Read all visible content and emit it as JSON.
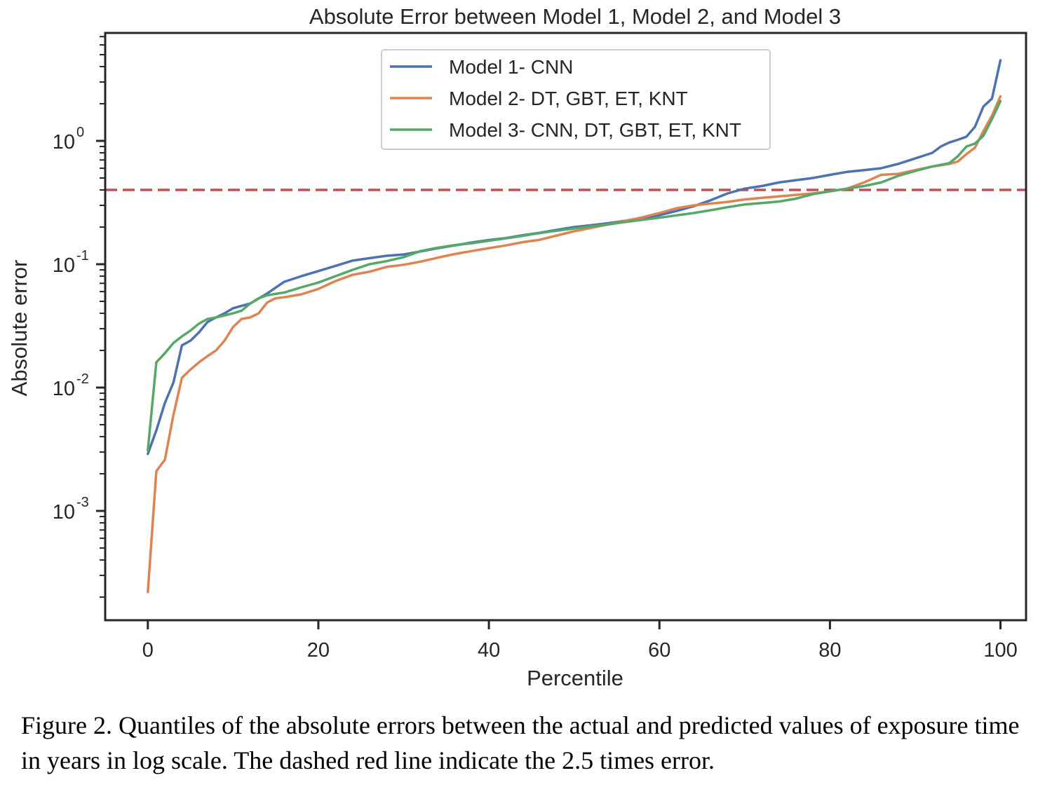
{
  "chart_data": {
    "type": "line",
    "title": "Absolute Error between Model 1, Model 2, and Model 3",
    "xlabel": "Percentile",
    "ylabel": "Absolute error",
    "y_scale": "log",
    "xlim": [
      -5,
      103
    ],
    "ylim": [
      0.00013,
      7.5
    ],
    "x_ticks": [
      0,
      20,
      40,
      60,
      80,
      100
    ],
    "y_ticks": [
      {
        "value": 0.001,
        "base": "10",
        "exp": "-3"
      },
      {
        "value": 0.01,
        "base": "10",
        "exp": "-2"
      },
      {
        "value": 0.1,
        "base": "10",
        "exp": "-1"
      },
      {
        "value": 1,
        "base": "10",
        "exp": "0"
      }
    ],
    "grid": false,
    "legend_position": "upper center",
    "threshold": {
      "value": 0.4,
      "style": "dashed",
      "color": "#c44e52"
    },
    "series": [
      {
        "name": "Model 1- CNN",
        "color": "#4c72b0",
        "points": [
          [
            0,
            0.0029
          ],
          [
            1,
            0.0045
          ],
          [
            2,
            0.0075
          ],
          [
            3,
            0.011
          ],
          [
            4,
            0.022
          ],
          [
            5,
            0.024
          ],
          [
            6,
            0.028
          ],
          [
            7,
            0.034
          ],
          [
            8,
            0.037
          ],
          [
            9,
            0.04
          ],
          [
            10,
            0.044
          ],
          [
            12,
            0.048
          ],
          [
            14,
            0.058
          ],
          [
            16,
            0.072
          ],
          [
            18,
            0.08
          ],
          [
            20,
            0.088
          ],
          [
            22,
            0.097
          ],
          [
            24,
            0.107
          ],
          [
            26,
            0.112
          ],
          [
            28,
            0.117
          ],
          [
            30,
            0.12
          ],
          [
            32,
            0.127
          ],
          [
            34,
            0.135
          ],
          [
            36,
            0.142
          ],
          [
            38,
            0.15
          ],
          [
            40,
            0.157
          ],
          [
            42,
            0.163
          ],
          [
            44,
            0.172
          ],
          [
            46,
            0.18
          ],
          [
            48,
            0.19
          ],
          [
            50,
            0.2
          ],
          [
            52,
            0.207
          ],
          [
            54,
            0.215
          ],
          [
            56,
            0.225
          ],
          [
            58,
            0.237
          ],
          [
            60,
            0.25
          ],
          [
            62,
            0.27
          ],
          [
            64,
            0.295
          ],
          [
            66,
            0.33
          ],
          [
            68,
            0.375
          ],
          [
            70,
            0.41
          ],
          [
            72,
            0.43
          ],
          [
            74,
            0.46
          ],
          [
            76,
            0.48
          ],
          [
            78,
            0.5
          ],
          [
            80,
            0.53
          ],
          [
            82,
            0.56
          ],
          [
            84,
            0.58
          ],
          [
            86,
            0.6
          ],
          [
            88,
            0.65
          ],
          [
            90,
            0.72
          ],
          [
            92,
            0.8
          ],
          [
            93,
            0.9
          ],
          [
            94,
            0.97
          ],
          [
            95,
            1.02
          ],
          [
            96,
            1.08
          ],
          [
            97,
            1.3
          ],
          [
            98,
            1.9
          ],
          [
            99,
            2.2
          ],
          [
            100,
            4.5
          ]
        ]
      },
      {
        "name": "Model 2- DT, GBT, ET, KNT",
        "color": "#dd8452",
        "points": [
          [
            0,
            0.00022
          ],
          [
            1,
            0.0021
          ],
          [
            2,
            0.0026
          ],
          [
            3,
            0.006
          ],
          [
            4,
            0.012
          ],
          [
            5,
            0.014
          ],
          [
            6,
            0.016
          ],
          [
            7,
            0.018
          ],
          [
            8,
            0.02
          ],
          [
            9,
            0.024
          ],
          [
            10,
            0.031
          ],
          [
            11,
            0.036
          ],
          [
            12,
            0.037
          ],
          [
            13,
            0.04
          ],
          [
            14,
            0.049
          ],
          [
            15,
            0.053
          ],
          [
            16,
            0.054
          ],
          [
            18,
            0.057
          ],
          [
            20,
            0.063
          ],
          [
            22,
            0.073
          ],
          [
            24,
            0.082
          ],
          [
            26,
            0.087
          ],
          [
            28,
            0.095
          ],
          [
            30,
            0.099
          ],
          [
            32,
            0.105
          ],
          [
            34,
            0.113
          ],
          [
            36,
            0.121
          ],
          [
            38,
            0.128
          ],
          [
            40,
            0.135
          ],
          [
            42,
            0.142
          ],
          [
            44,
            0.151
          ],
          [
            46,
            0.158
          ],
          [
            48,
            0.171
          ],
          [
            50,
            0.185
          ],
          [
            52,
            0.197
          ],
          [
            54,
            0.21
          ],
          [
            56,
            0.224
          ],
          [
            58,
            0.24
          ],
          [
            60,
            0.26
          ],
          [
            62,
            0.284
          ],
          [
            64,
            0.3
          ],
          [
            66,
            0.31
          ],
          [
            68,
            0.32
          ],
          [
            70,
            0.335
          ],
          [
            72,
            0.345
          ],
          [
            74,
            0.355
          ],
          [
            76,
            0.365
          ],
          [
            78,
            0.375
          ],
          [
            80,
            0.39
          ],
          [
            82,
            0.41
          ],
          [
            84,
            0.46
          ],
          [
            86,
            0.53
          ],
          [
            88,
            0.54
          ],
          [
            90,
            0.58
          ],
          [
            92,
            0.62
          ],
          [
            94,
            0.65
          ],
          [
            95,
            0.68
          ],
          [
            96,
            0.78
          ],
          [
            97,
            0.88
          ],
          [
            98,
            1.2
          ],
          [
            99,
            1.6
          ],
          [
            100,
            2.3
          ]
        ]
      },
      {
        "name": "Model 3- CNN, DT, GBT, ET, KNT",
        "color": "#55a868",
        "points": [
          [
            0,
            0.0031
          ],
          [
            1,
            0.016
          ],
          [
            2,
            0.019
          ],
          [
            3,
            0.023
          ],
          [
            4,
            0.026
          ],
          [
            5,
            0.029
          ],
          [
            6,
            0.033
          ],
          [
            7,
            0.036
          ],
          [
            8,
            0.037
          ],
          [
            10,
            0.04
          ],
          [
            11,
            0.042
          ],
          [
            12,
            0.048
          ],
          [
            13,
            0.053
          ],
          [
            14,
            0.056
          ],
          [
            16,
            0.059
          ],
          [
            18,
            0.065
          ],
          [
            20,
            0.071
          ],
          [
            22,
            0.08
          ],
          [
            24,
            0.09
          ],
          [
            26,
            0.1
          ],
          [
            28,
            0.106
          ],
          [
            30,
            0.114
          ],
          [
            32,
            0.128
          ],
          [
            34,
            0.136
          ],
          [
            36,
            0.143
          ],
          [
            38,
            0.148
          ],
          [
            40,
            0.155
          ],
          [
            42,
            0.162
          ],
          [
            44,
            0.17
          ],
          [
            46,
            0.179
          ],
          [
            48,
            0.187
          ],
          [
            50,
            0.195
          ],
          [
            52,
            0.203
          ],
          [
            54,
            0.21
          ],
          [
            56,
            0.22
          ],
          [
            58,
            0.229
          ],
          [
            60,
            0.238
          ],
          [
            62,
            0.249
          ],
          [
            64,
            0.26
          ],
          [
            66,
            0.274
          ],
          [
            68,
            0.29
          ],
          [
            70,
            0.305
          ],
          [
            72,
            0.313
          ],
          [
            74,
            0.322
          ],
          [
            76,
            0.34
          ],
          [
            78,
            0.37
          ],
          [
            80,
            0.39
          ],
          [
            82,
            0.41
          ],
          [
            84,
            0.43
          ],
          [
            86,
            0.46
          ],
          [
            88,
            0.52
          ],
          [
            90,
            0.57
          ],
          [
            92,
            0.62
          ],
          [
            94,
            0.66
          ],
          [
            95,
            0.75
          ],
          [
            96,
            0.9
          ],
          [
            97,
            0.95
          ],
          [
            98,
            1.1
          ],
          [
            99,
            1.5
          ],
          [
            100,
            2.1
          ]
        ]
      }
    ]
  },
  "caption": "Figure 2. Quantiles of the absolute errors between the actual and predicted values of exposure time in years in log scale. The dashed red line indicate the 2.5 times error."
}
